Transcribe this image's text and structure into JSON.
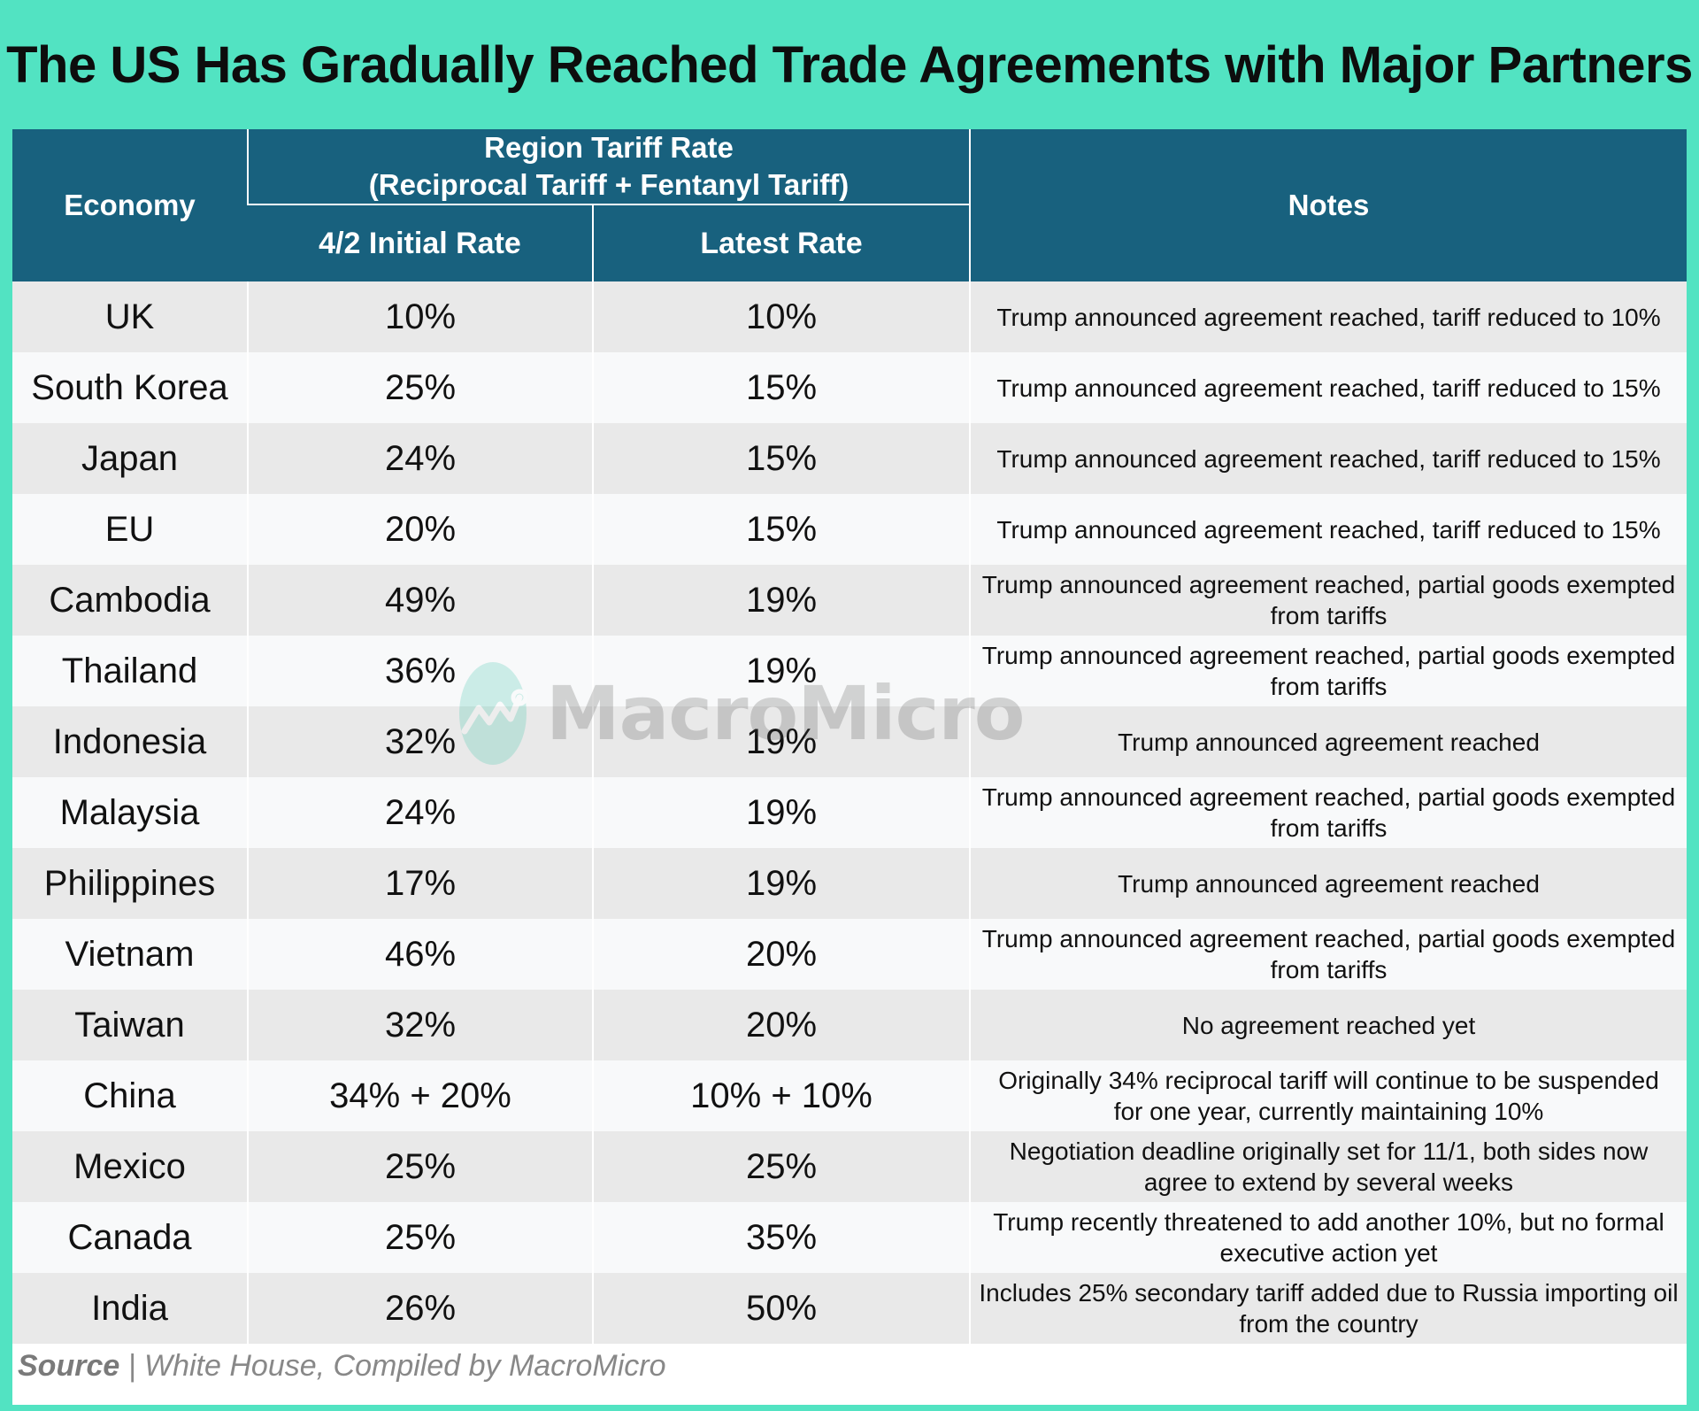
{
  "title": "The US Has Gradually Reached Trade Agreements with Major Partners",
  "header": {
    "economy": "Economy",
    "group_line1": "Region Tariff Rate",
    "group_line2": "(Reciprocal Tariff + Fentanyl Tariff)",
    "initial": "4/2 Initial Rate",
    "latest": "Latest Rate",
    "notes": "Notes"
  },
  "rows": [
    {
      "economy": "UK",
      "initial": "10%",
      "latest": "10%",
      "note1": "Trump announced agreement reached, tariff reduced to 10%",
      "note2": ""
    },
    {
      "economy": "South Korea",
      "initial": "25%",
      "latest": "15%",
      "note1": "Trump announced agreement reached, tariff reduced to 15%",
      "note2": ""
    },
    {
      "economy": "Japan",
      "initial": "24%",
      "latest": "15%",
      "note1": "Trump announced agreement reached, tariff reduced to 15%",
      "note2": ""
    },
    {
      "economy": "EU",
      "initial": "20%",
      "latest": "15%",
      "note1": "Trump announced agreement reached, tariff reduced to 15%",
      "note2": ""
    },
    {
      "economy": "Cambodia",
      "initial": "49%",
      "latest": "19%",
      "note1": "Trump announced agreement reached, partial goods exempted",
      "note2": "from tariffs"
    },
    {
      "economy": "Thailand",
      "initial": "36%",
      "latest": "19%",
      "note1": "Trump announced agreement reached, partial goods exempted",
      "note2": "from tariffs"
    },
    {
      "economy": "Indonesia",
      "initial": "32%",
      "latest": "19%",
      "note1": "Trump announced agreement reached",
      "note2": ""
    },
    {
      "economy": "Malaysia",
      "initial": "24%",
      "latest": "19%",
      "note1": "Trump announced agreement reached, partial goods exempted",
      "note2": "from tariffs"
    },
    {
      "economy": "Philippines",
      "initial": "17%",
      "latest": "19%",
      "note1": "Trump announced agreement reached",
      "note2": ""
    },
    {
      "economy": "Vietnam",
      "initial": "46%",
      "latest": "20%",
      "note1": "Trump announced agreement reached, partial goods exempted",
      "note2": "from tariffs"
    },
    {
      "economy": "Taiwan",
      "initial": "32%",
      "latest": "20%",
      "note1": "No agreement reached yet",
      "note2": ""
    },
    {
      "economy": "China",
      "initial": "34% + 20%",
      "latest": "10% + 10%",
      "note1": "Originally 34% reciprocal tariff will continue to be suspended",
      "note2": "for one year, currently maintaining 10%"
    },
    {
      "economy": "Mexico",
      "initial": "25%",
      "latest": "25%",
      "note1": "Negotiation deadline originally set for 11/1, both sides now",
      "note2": "agree to extend by several weeks"
    },
    {
      "economy": "Canada",
      "initial": "25%",
      "latest": "35%",
      "note1": "Trump recently threatened to add another 10%, but no formal",
      "note2": "executive action yet"
    },
    {
      "economy": "India",
      "initial": "26%",
      "latest": "50%",
      "note1": "Includes 25% secondary tariff added due to Russia importing oil",
      "note2": "from the country"
    }
  ],
  "source": {
    "label": "Source",
    "separator": " | ",
    "text": "White House, Compiled by MacroMicro"
  },
  "watermark": "MacroMicro",
  "colors": {
    "frame": "#52e3c2",
    "header": "#18617e",
    "row_odd": "#e9e9e9",
    "row_even": "#f8f9fa"
  }
}
